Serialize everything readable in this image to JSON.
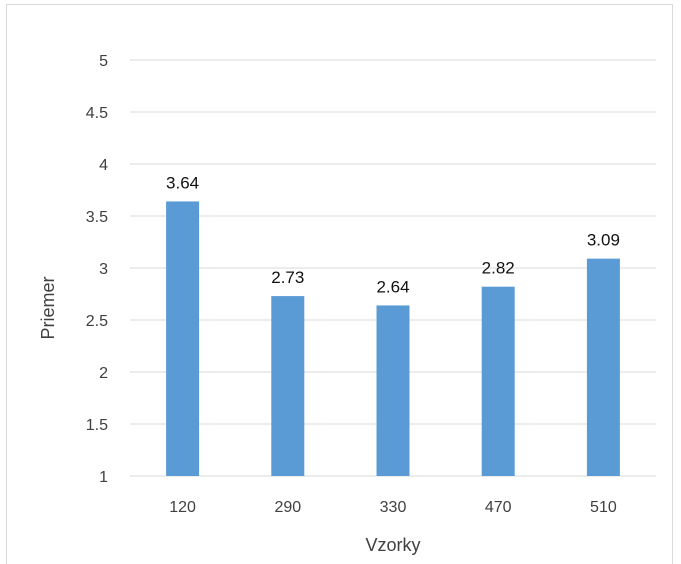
{
  "chart_data": {
    "type": "bar",
    "categories": [
      "120",
      "290",
      "330",
      "470",
      "510"
    ],
    "values": [
      3.64,
      2.73,
      2.64,
      2.82,
      3.09
    ],
    "data_labels": [
      "3.64",
      "2.73",
      "2.64",
      "2.82",
      "3.09"
    ],
    "xlabel": "Vzorky",
    "ylabel": "Priemer",
    "ylim": [
      1,
      5
    ],
    "yticks": [
      "1",
      "1.5",
      "2",
      "2.5",
      "3",
      "3.5",
      "4",
      "4.5",
      "5"
    ],
    "grid": true,
    "legend": "none",
    "bar_color": "#5b9bd5",
    "grid_color": "#d9d9d9"
  }
}
